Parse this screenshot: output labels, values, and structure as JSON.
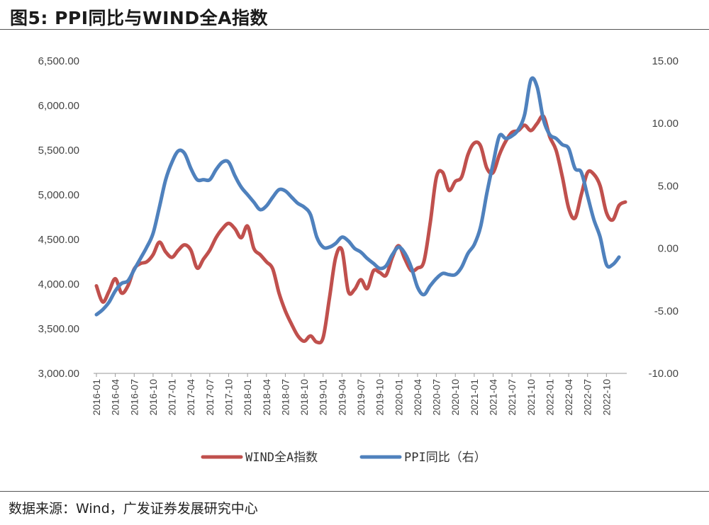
{
  "figure": {
    "title": "图5:  PPI同比与WIND全A指数",
    "source": "数据来源：Wind，广发证券发展研究中心"
  },
  "colors": {
    "wind": "#c0504d",
    "ppi": "#4f81bd",
    "axis": "#999999"
  },
  "chart_data": {
    "type": "line",
    "left_axis": {
      "min": 3000,
      "max": 6500,
      "step": 500,
      "tick_labels": [
        "3,000.00",
        "3,500.00",
        "4,000.00",
        "4,500.00",
        "5,000.00",
        "5,500.00",
        "6,000.00",
        "6,500.00"
      ]
    },
    "right_axis": {
      "min": -10,
      "max": 15,
      "step": 5,
      "tick_labels": [
        "-10.00",
        "-5.00",
        "0.00",
        "5.00",
        "10.00",
        "15.00"
      ]
    },
    "x_tick_labels": [
      "2016-01",
      "2016-04",
      "2016-07",
      "2016-10",
      "2017-01",
      "2017-04",
      "2017-07",
      "2017-10",
      "2018-01",
      "2018-04",
      "2018-07",
      "2018-10",
      "2019-01",
      "2019-04",
      "2019-07",
      "2019-10",
      "2020-01",
      "2020-04",
      "2020-07",
      "2020-10",
      "2021-01",
      "2021-04",
      "2021-07",
      "2021-10",
      "2022-01",
      "2022-04",
      "2022-07",
      "2022-10"
    ],
    "legend_position": "bottom",
    "series": [
      {
        "name": "WIND全A指数",
        "axis": "left",
        "points": [
          [
            "2016-01",
            3980
          ],
          [
            "2016-02",
            3800
          ],
          [
            "2016-03",
            3920
          ],
          [
            "2016-04",
            4060
          ],
          [
            "2016-05",
            3900
          ],
          [
            "2016-06",
            3980
          ],
          [
            "2016-07",
            4170
          ],
          [
            "2016-08",
            4230
          ],
          [
            "2016-09",
            4250
          ],
          [
            "2016-10",
            4330
          ],
          [
            "2016-11",
            4470
          ],
          [
            "2016-12",
            4360
          ],
          [
            "2017-01",
            4300
          ],
          [
            "2017-02",
            4380
          ],
          [
            "2017-03",
            4440
          ],
          [
            "2017-04",
            4380
          ],
          [
            "2017-05",
            4180
          ],
          [
            "2017-06",
            4280
          ],
          [
            "2017-07",
            4380
          ],
          [
            "2017-08",
            4520
          ],
          [
            "2017-09",
            4620
          ],
          [
            "2017-10",
            4680
          ],
          [
            "2017-11",
            4620
          ],
          [
            "2017-12",
            4520
          ],
          [
            "2018-01",
            4650
          ],
          [
            "2018-02",
            4400
          ],
          [
            "2018-03",
            4330
          ],
          [
            "2018-04",
            4250
          ],
          [
            "2018-05",
            4170
          ],
          [
            "2018-06",
            3900
          ],
          [
            "2018-07",
            3700
          ],
          [
            "2018-08",
            3550
          ],
          [
            "2018-09",
            3420
          ],
          [
            "2018-10",
            3360
          ],
          [
            "2018-11",
            3420
          ],
          [
            "2018-12",
            3350
          ],
          [
            "2019-01",
            3400
          ],
          [
            "2019-02",
            3840
          ],
          [
            "2019-03",
            4300
          ],
          [
            "2019-04",
            4380
          ],
          [
            "2019-05",
            3920
          ],
          [
            "2019-06",
            3940
          ],
          [
            "2019-07",
            4050
          ],
          [
            "2019-08",
            3950
          ],
          [
            "2019-09",
            4150
          ],
          [
            "2019-10",
            4130
          ],
          [
            "2019-11",
            4100
          ],
          [
            "2019-12",
            4300
          ],
          [
            "2020-01",
            4430
          ],
          [
            "2020-02",
            4280
          ],
          [
            "2020-03",
            4150
          ],
          [
            "2020-04",
            4180
          ],
          [
            "2020-05",
            4250
          ],
          [
            "2020-06",
            4680
          ],
          [
            "2020-07",
            5200
          ],
          [
            "2020-08",
            5250
          ],
          [
            "2020-09",
            5050
          ],
          [
            "2020-10",
            5150
          ],
          [
            "2020-11",
            5200
          ],
          [
            "2020-12",
            5450
          ],
          [
            "2021-01",
            5580
          ],
          [
            "2021-02",
            5550
          ],
          [
            "2021-03",
            5300
          ],
          [
            "2021-04",
            5250
          ],
          [
            "2021-05",
            5450
          ],
          [
            "2021-06",
            5600
          ],
          [
            "2021-07",
            5700
          ],
          [
            "2021-08",
            5720
          ],
          [
            "2021-09",
            5780
          ],
          [
            "2021-10",
            5720
          ],
          [
            "2021-11",
            5800
          ],
          [
            "2021-12",
            5880
          ],
          [
            "2022-01",
            5650
          ],
          [
            "2022-02",
            5500
          ],
          [
            "2022-03",
            5200
          ],
          [
            "2022-04",
            4850
          ],
          [
            "2022-05",
            4740
          ],
          [
            "2022-06",
            5000
          ],
          [
            "2022-07",
            5250
          ],
          [
            "2022-08",
            5230
          ],
          [
            "2022-09",
            5100
          ],
          [
            "2022-10",
            4800
          ],
          [
            "2022-11",
            4720
          ],
          [
            "2022-12",
            4880
          ],
          [
            "2023-01",
            4920
          ]
        ]
      },
      {
        "name": "PPI同比（右）",
        "axis": "right",
        "points": [
          [
            "2016-01",
            -5.3
          ],
          [
            "2016-02",
            -4.9
          ],
          [
            "2016-03",
            -4.3
          ],
          [
            "2016-04",
            -3.4
          ],
          [
            "2016-05",
            -2.8
          ],
          [
            "2016-06",
            -2.6
          ],
          [
            "2016-07",
            -1.7
          ],
          [
            "2016-08",
            -0.8
          ],
          [
            "2016-09",
            0.1
          ],
          [
            "2016-10",
            1.2
          ],
          [
            "2016-11",
            3.3
          ],
          [
            "2016-12",
            5.5
          ],
          [
            "2017-01",
            6.9
          ],
          [
            "2017-02",
            7.8
          ],
          [
            "2017-03",
            7.6
          ],
          [
            "2017-04",
            6.4
          ],
          [
            "2017-05",
            5.5
          ],
          [
            "2017-06",
            5.5
          ],
          [
            "2017-07",
            5.5
          ],
          [
            "2017-08",
            6.3
          ],
          [
            "2017-09",
            6.9
          ],
          [
            "2017-10",
            6.9
          ],
          [
            "2017-11",
            5.8
          ],
          [
            "2017-12",
            4.9
          ],
          [
            "2018-01",
            4.3
          ],
          [
            "2018-02",
            3.7
          ],
          [
            "2018-03",
            3.1
          ],
          [
            "2018-04",
            3.4
          ],
          [
            "2018-05",
            4.1
          ],
          [
            "2018-06",
            4.7
          ],
          [
            "2018-07",
            4.6
          ],
          [
            "2018-08",
            4.1
          ],
          [
            "2018-09",
            3.6
          ],
          [
            "2018-10",
            3.3
          ],
          [
            "2018-11",
            2.7
          ],
          [
            "2018-12",
            0.9
          ],
          [
            "2019-01",
            0.1
          ],
          [
            "2019-02",
            0.1
          ],
          [
            "2019-03",
            0.4
          ],
          [
            "2019-04",
            0.9
          ],
          [
            "2019-05",
            0.6
          ],
          [
            "2019-06",
            0.0
          ],
          [
            "2019-07",
            -0.3
          ],
          [
            "2019-08",
            -0.8
          ],
          [
            "2019-09",
            -1.2
          ],
          [
            "2019-10",
            -1.6
          ],
          [
            "2019-11",
            -1.4
          ],
          [
            "2019-12",
            -0.5
          ],
          [
            "2020-01",
            0.1
          ],
          [
            "2020-02",
            -0.4
          ],
          [
            "2020-03",
            -1.5
          ],
          [
            "2020-04",
            -3.1
          ],
          [
            "2020-05",
            -3.7
          ],
          [
            "2020-06",
            -3.0
          ],
          [
            "2020-07",
            -2.4
          ],
          [
            "2020-08",
            -2.0
          ],
          [
            "2020-09",
            -2.1
          ],
          [
            "2020-10",
            -2.1
          ],
          [
            "2020-11",
            -1.5
          ],
          [
            "2020-12",
            -0.4
          ],
          [
            "2021-01",
            0.3
          ],
          [
            "2021-02",
            1.7
          ],
          [
            "2021-03",
            4.4
          ],
          [
            "2021-04",
            6.8
          ],
          [
            "2021-05",
            9.0
          ],
          [
            "2021-06",
            8.8
          ],
          [
            "2021-07",
            9.0
          ],
          [
            "2021-08",
            9.5
          ],
          [
            "2021-09",
            10.7
          ],
          [
            "2021-10",
            13.5
          ],
          [
            "2021-11",
            12.9
          ],
          [
            "2021-12",
            10.3
          ],
          [
            "2022-01",
            9.1
          ],
          [
            "2022-02",
            8.8
          ],
          [
            "2022-03",
            8.3
          ],
          [
            "2022-04",
            8.0
          ],
          [
            "2022-05",
            6.4
          ],
          [
            "2022-06",
            6.1
          ],
          [
            "2022-07",
            4.2
          ],
          [
            "2022-08",
            2.3
          ],
          [
            "2022-09",
            0.9
          ],
          [
            "2022-10",
            -1.3
          ],
          [
            "2022-11",
            -1.3
          ],
          [
            "2022-12",
            -0.7
          ]
        ]
      }
    ]
  }
}
